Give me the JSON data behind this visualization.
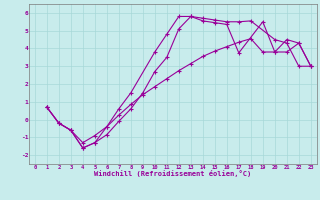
{
  "xlabel": "Windchill (Refroidissement éolien,°C)",
  "bg_color": "#c8ecec",
  "line_color": "#990099",
  "grid_color": "#a8d8d8",
  "xlim": [
    -0.5,
    23.5
  ],
  "ylim": [
    -2.5,
    6.5
  ],
  "xticks": [
    0,
    1,
    2,
    3,
    4,
    5,
    6,
    7,
    8,
    9,
    10,
    11,
    12,
    13,
    14,
    15,
    16,
    17,
    18,
    19,
    20,
    21,
    22,
    23
  ],
  "yticks": [
    -2,
    -1,
    0,
    1,
    2,
    3,
    4,
    5,
    6
  ],
  "line1_x": [
    1,
    2,
    3,
    4,
    5,
    6,
    7,
    8,
    10,
    11,
    12,
    13,
    14,
    15,
    16,
    17,
    18,
    20,
    21,
    22,
    23
  ],
  "line1_y": [
    0.7,
    -0.2,
    -0.6,
    -1.3,
    -0.9,
    -0.4,
    0.6,
    1.5,
    3.8,
    4.8,
    5.8,
    5.8,
    5.7,
    5.6,
    5.5,
    5.5,
    5.55,
    4.5,
    4.3,
    3.0,
    3.0
  ],
  "line2_x": [
    1,
    2,
    3,
    4,
    5,
    6,
    7,
    8,
    9,
    10,
    11,
    12,
    13,
    14,
    15,
    16,
    17,
    19,
    20,
    21,
    22,
    23
  ],
  "line2_y": [
    0.7,
    -0.2,
    -0.6,
    -1.6,
    -1.3,
    -0.85,
    -0.1,
    0.6,
    1.5,
    2.7,
    3.5,
    5.1,
    5.8,
    5.55,
    5.45,
    5.35,
    3.75,
    5.5,
    3.8,
    4.5,
    4.3,
    3.0
  ],
  "line3_x": [
    1,
    2,
    3,
    4,
    5,
    6,
    7,
    8,
    9,
    10,
    11,
    12,
    13,
    14,
    15,
    16,
    17,
    18,
    19,
    20,
    21,
    22,
    23
  ],
  "line3_y": [
    0.7,
    -0.2,
    -0.6,
    -1.6,
    -1.3,
    -0.4,
    0.25,
    0.85,
    1.4,
    1.85,
    2.3,
    2.75,
    3.15,
    3.55,
    3.85,
    4.1,
    4.35,
    4.55,
    3.8,
    3.8,
    3.8,
    4.3,
    3.0
  ]
}
